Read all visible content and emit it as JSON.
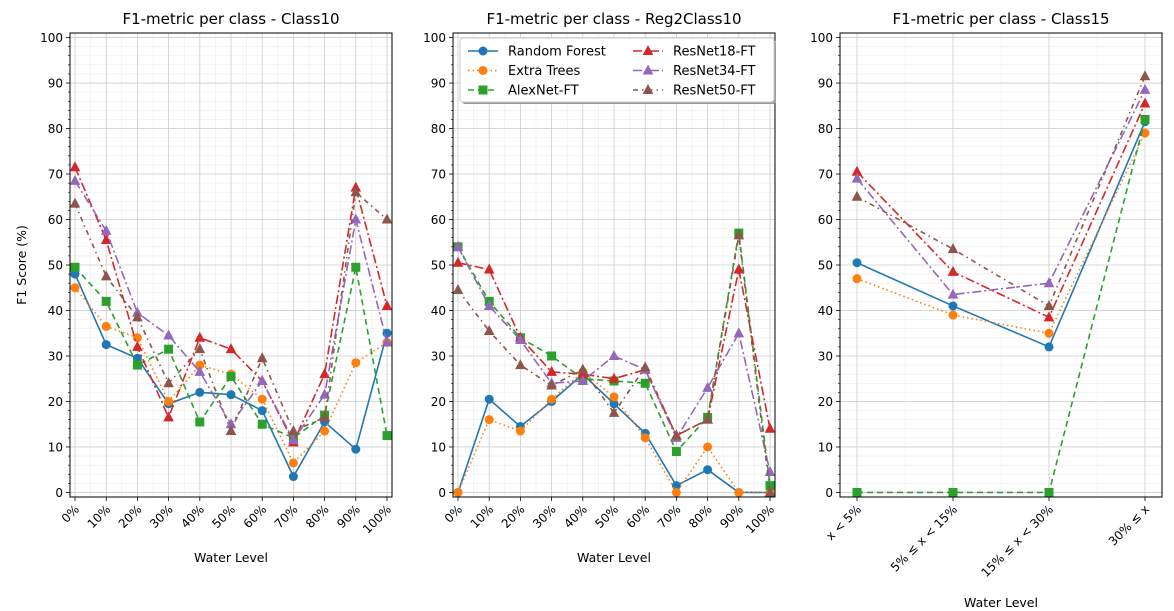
{
  "chart_data": [
    {
      "type": "line",
      "title": "F1-metric per class - Class10",
      "xlabel": "Water Level",
      "ylabel": "F1 Score (%)",
      "ylim": [
        -1,
        101
      ],
      "yticks": [
        0,
        10,
        20,
        30,
        40,
        50,
        60,
        70,
        80,
        90,
        100
      ],
      "grid": true,
      "categories": [
        "0%",
        "10%",
        "20%",
        "30%",
        "40%",
        "50%",
        "60%",
        "70%",
        "80%",
        "90%",
        "100%"
      ],
      "series": [
        {
          "name": "Random Forest",
          "values": [
            48,
            32.5,
            29.5,
            19.5,
            22,
            21.5,
            18,
            3.5,
            15.5,
            9.5,
            35
          ]
        },
        {
          "name": "Extra Trees",
          "values": [
            45,
            36.5,
            34,
            20,
            28,
            26,
            20.5,
            6.5,
            13.5,
            28.5,
            33
          ]
        },
        {
          "name": "AlexNet-FT",
          "values": [
            49.5,
            42,
            28,
            31.5,
            15.5,
            25.5,
            15,
            12,
            17,
            49.5,
            12.5
          ]
        },
        {
          "name": "ResNet18-FT",
          "values": [
            71.5,
            55.5,
            32,
            16.5,
            34,
            31.5,
            24.5,
            11,
            26,
            67,
            41
          ]
        },
        {
          "name": "ResNet34-FT",
          "values": [
            68.5,
            57.5,
            39.5,
            34.5,
            26.5,
            15,
            24.5,
            11.5,
            21.5,
            60,
            33
          ]
        },
        {
          "name": "ResNet50-FT",
          "values": [
            63.5,
            47.5,
            38.5,
            24,
            31.5,
            13.5,
            29.5,
            13.5,
            16.5,
            66,
            60
          ]
        }
      ]
    },
    {
      "type": "line",
      "title": "F1-metric per class - Reg2Class10",
      "xlabel": "Water Level",
      "ylabel": "",
      "ylim": [
        -1,
        101
      ],
      "yticks": [
        0,
        10,
        20,
        30,
        40,
        50,
        60,
        70,
        80,
        90,
        100
      ],
      "grid": true,
      "legend": "top (2 columns)",
      "categories": [
        "0%",
        "10%",
        "20%",
        "30%",
        "40%",
        "50%",
        "60%",
        "70%",
        "80%",
        "90%",
        "100%"
      ],
      "series": [
        {
          "name": "Random Forest",
          "values": [
            0,
            20.5,
            14.5,
            20,
            26,
            19.5,
            13,
            1.5,
            5,
            0,
            0
          ]
        },
        {
          "name": "Extra Trees",
          "values": [
            0,
            16,
            13.5,
            20.5,
            26.5,
            21,
            12,
            0,
            10,
            0,
            0
          ]
        },
        {
          "name": "AlexNet-FT",
          "values": [
            54,
            42,
            34,
            30,
            25,
            24.5,
            24,
            9,
            16.5,
            57,
            1.5
          ]
        },
        {
          "name": "ResNet18-FT",
          "values": [
            50.5,
            49,
            34,
            26.5,
            26,
            25,
            27,
            12.5,
            16,
            49,
            14
          ]
        },
        {
          "name": "ResNet34-FT",
          "values": [
            54,
            41,
            33.5,
            24,
            24.5,
            30,
            27,
            12,
            23,
            35,
            4.5
          ]
        },
        {
          "name": "ResNet50-FT",
          "values": [
            44.5,
            35.5,
            28,
            23.5,
            27,
            17.5,
            27.5,
            12.5,
            16,
            56.5,
            0
          ]
        }
      ]
    },
    {
      "type": "line",
      "title": "F1-metric per class - Class15",
      "xlabel": "Water Level",
      "ylabel": "",
      "ylim": [
        -1,
        101
      ],
      "yticks": [
        0,
        10,
        20,
        30,
        40,
        50,
        60,
        70,
        80,
        90,
        100
      ],
      "grid": true,
      "categories": [
        "x < 5%",
        "5% ≤ x < 15%",
        "15% ≤ x < 30%",
        "30% ≤ x"
      ],
      "series": [
        {
          "name": "Random Forest",
          "values": [
            50.5,
            41,
            32,
            81.5
          ]
        },
        {
          "name": "Extra Trees",
          "values": [
            47,
            39,
            35,
            79
          ]
        },
        {
          "name": "AlexNet-FT",
          "values": [
            0,
            0,
            0,
            82
          ]
        },
        {
          "name": "ResNet18-FT",
          "values": [
            70.5,
            48.5,
            38.5,
            85.5
          ]
        },
        {
          "name": "ResNet34-FT",
          "values": [
            69,
            43.5,
            46,
            88.5
          ]
        },
        {
          "name": "ResNet50-FT",
          "values": [
            65,
            53.5,
            41,
            91.5
          ]
        }
      ]
    }
  ],
  "styles": {
    "Random Forest": {
      "color": "#1f77b4",
      "dash": "",
      "marker": "circle"
    },
    "Extra Trees": {
      "color": "#ff7f0e",
      "dash": "1.5,3",
      "marker": "circle"
    },
    "AlexNet-FT": {
      "color": "#2ca02c",
      "dash": "6,4",
      "marker": "square"
    },
    "ResNet18-FT": {
      "color": "#d62728",
      "dash": "9,3,2,3",
      "marker": "triangle"
    },
    "ResNet34-FT": {
      "color": "#9467bd",
      "dash": "9,3,2,3",
      "marker": "triangle"
    },
    "ResNet50-FT": {
      "color": "#8c564b",
      "dash": "5,4,1.5,4",
      "marker": "triangle"
    }
  }
}
